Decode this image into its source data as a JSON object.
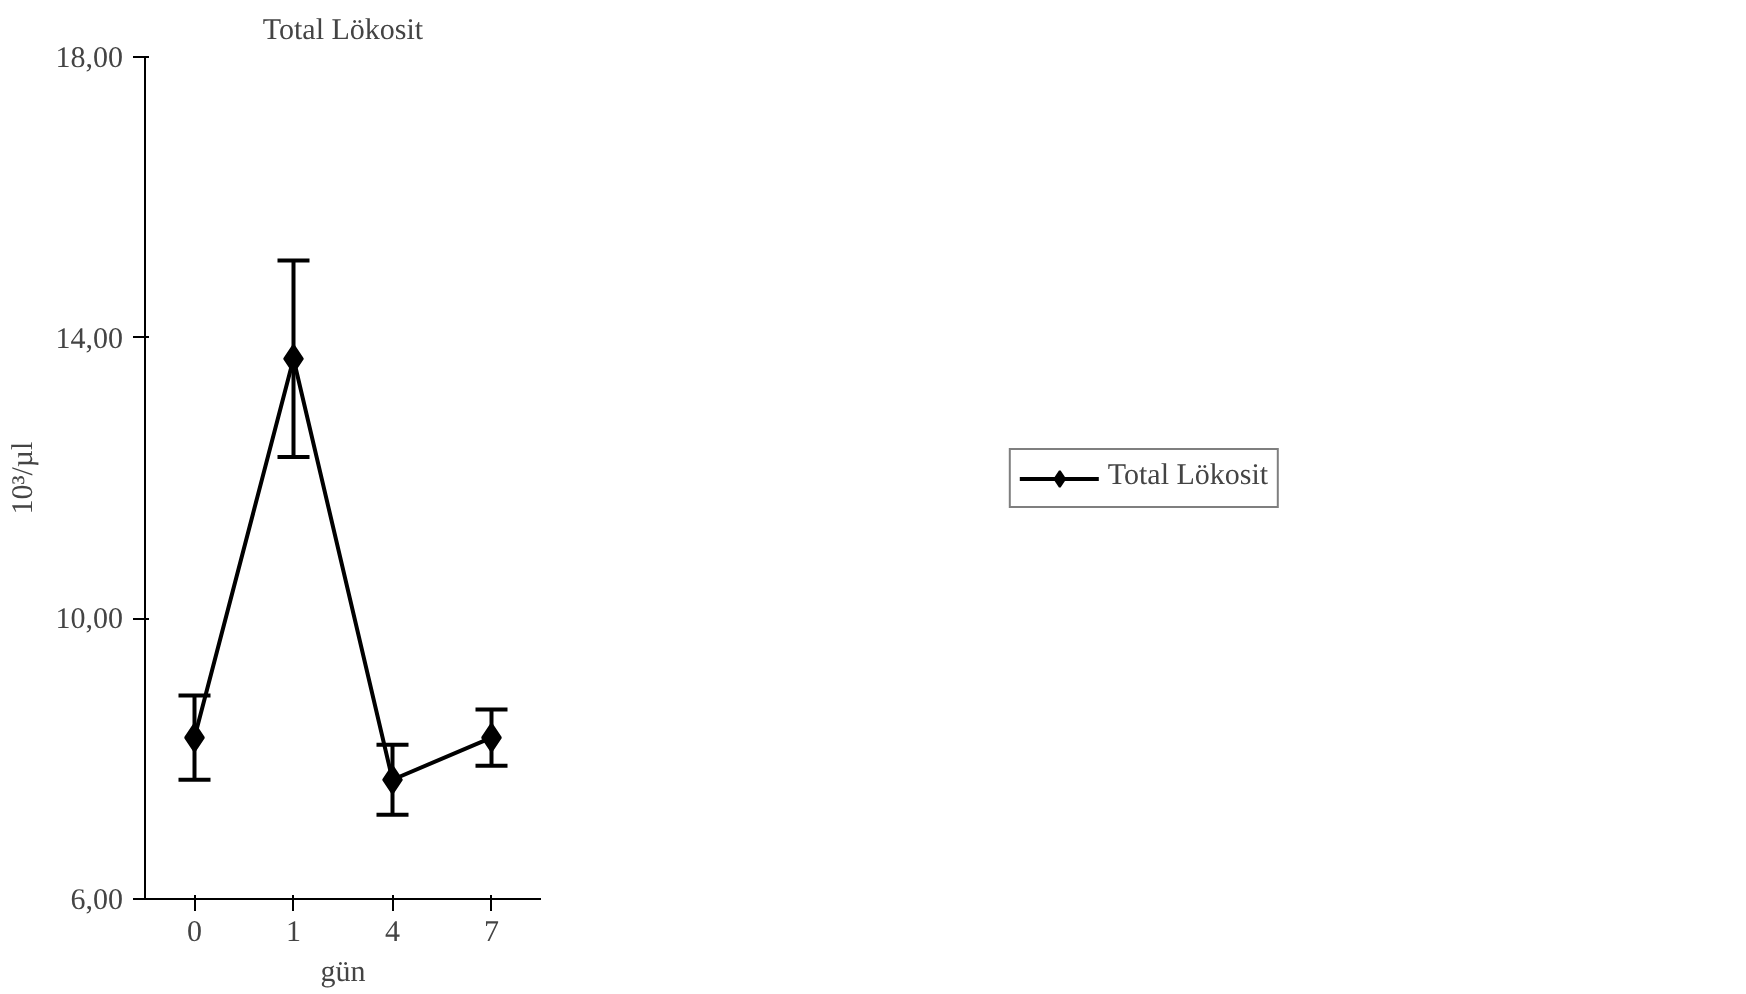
{
  "chart_data": {
    "type": "line",
    "title": "Total Lökosit",
    "xlabel": "gün",
    "ylabel": "10³/µl",
    "categories": [
      "0",
      "1",
      "4",
      "7"
    ],
    "series": [
      {
        "name": "Total Lökosit",
        "color": "#000000",
        "values": [
          8.3,
          13.7,
          7.7,
          8.3
        ],
        "errors": [
          0.6,
          1.4,
          0.5,
          0.4
        ]
      }
    ],
    "ylim": [
      6,
      18
    ],
    "yticks": [
      {
        "value": 6,
        "label": "6,00"
      },
      {
        "value": 10,
        "label": "10,00"
      },
      {
        "value": 14,
        "label": "14,00"
      },
      {
        "value": 18,
        "label": "18,00"
      }
    ],
    "marker": "diamond",
    "grid": false,
    "legend": "right"
  }
}
